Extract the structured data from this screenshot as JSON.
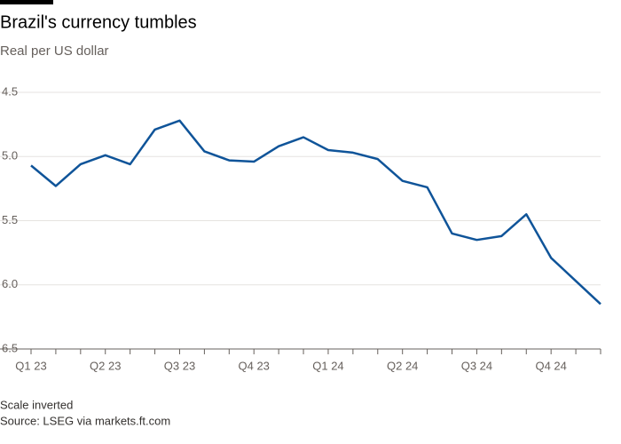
{
  "chart_data": {
    "type": "line",
    "title": "Brazil's currency tumbles",
    "subtitle": "Real per US dollar",
    "note": "Scale inverted",
    "source": "Source: LSEG via markets.ft.com",
    "categories": [
      "Q1 23",
      null,
      null,
      "Q2 23",
      null,
      null,
      "Q3 23",
      null,
      null,
      "Q4 23",
      null,
      null,
      "Q1 24",
      null,
      null,
      "Q2 24",
      null,
      null,
      "Q3 24",
      null,
      null,
      "Q4 24",
      null,
      null
    ],
    "series": [
      {
        "name": "Real per US dollar",
        "color": "#0f5499",
        "values": [
          5.07,
          5.23,
          5.06,
          4.99,
          5.06,
          4.79,
          4.72,
          4.96,
          5.03,
          5.04,
          4.92,
          4.85,
          4.95,
          4.97,
          5.02,
          5.19,
          5.24,
          5.6,
          5.65,
          5.62,
          5.45,
          5.79,
          5.97,
          6.15
        ]
      }
    ],
    "ylim": [
      4.5,
      6.5
    ],
    "yticks": [
      4.5,
      {
        "value": 5,
        "label": "5.0"
      },
      5.5,
      {
        "value": 6,
        "label": "6.0"
      },
      6.5
    ],
    "inverted": true,
    "grid": true
  }
}
